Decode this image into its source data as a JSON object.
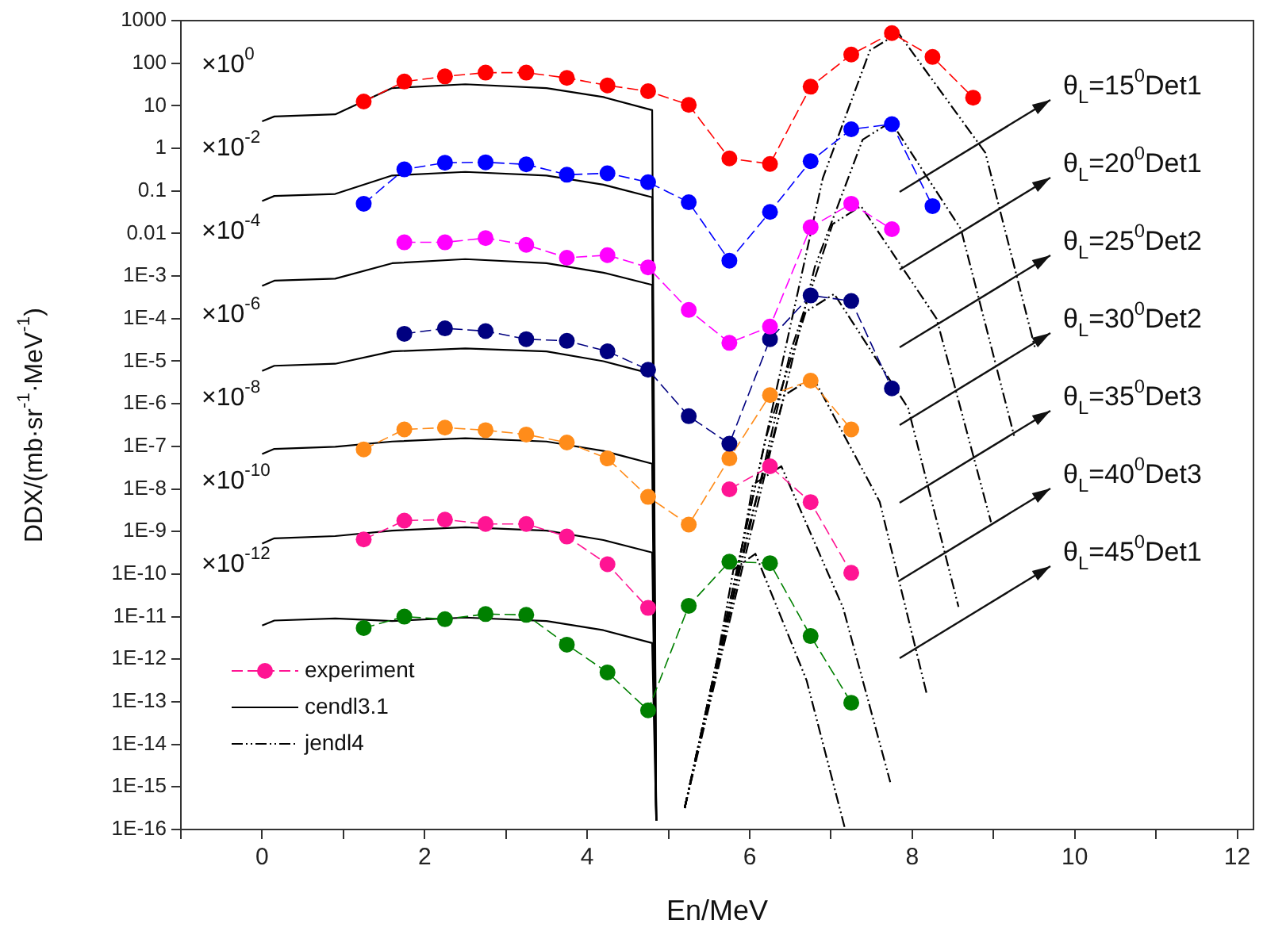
{
  "chart_data": {
    "type": "line",
    "xlabel": "En/MeV",
    "ylabel": "DDX/(mb·sr$^{-1}$·MeV$^{-1}$)",
    "log": "y",
    "grid": false,
    "legend": "bottom left",
    "xlim": [
      -1,
      12.2
    ],
    "ylim": [
      1e-16,
      1000
    ],
    "xticks": [
      {
        "value": -1,
        "label": null
      },
      0,
      {
        "value": 1,
        "label": null
      },
      2,
      {
        "value": 3,
        "label": null
      },
      4,
      {
        "value": 5,
        "label": null
      },
      6,
      {
        "value": 7,
        "label": null
      },
      8,
      {
        "value": 9,
        "label": null
      },
      10,
      {
        "value": 11,
        "label": null
      },
      12
    ],
    "yticks": [
      1000,
      100,
      10,
      1,
      0.1,
      0.01,
      {
        "value": 0.001,
        "label": "1E-3"
      },
      {
        "value": 0.0001,
        "label": "1E-4"
      },
      {
        "value": 1e-05,
        "label": "1E-5"
      },
      {
        "value": 1e-06,
        "label": "1E-6"
      },
      {
        "value": 1e-07,
        "label": "1E-7"
      },
      {
        "value": 1e-08,
        "label": "1E-8"
      },
      {
        "value": 1e-09,
        "label": "1E-9"
      },
      {
        "value": 1e-10,
        "label": "1E-10"
      },
      {
        "value": 1e-11,
        "label": "1E-11"
      },
      {
        "value": 1e-12,
        "label": "1E-12"
      },
      {
        "value": 1e-13,
        "label": "1E-13"
      },
      {
        "value": 1e-14,
        "label": "1E-14"
      },
      {
        "value": 1e-15,
        "label": "1E-15"
      },
      {
        "value": 1e-16,
        "label": "1E-16"
      }
    ],
    "series": [
      {
        "type": "line",
        "marker": "circle",
        "line_style": "dashed",
        "color": "#ff0000",
        "x": [
          1.25,
          1.75,
          2.25,
          2.75,
          3.25,
          3.75,
          4.25,
          4.75,
          5.25,
          5.75,
          6.25,
          6.75,
          7.25,
          7.75,
          8.25,
          8.75
        ],
        "values": [
          12.6,
          37,
          49,
          60,
          60,
          45,
          30,
          22,
          10.5,
          0.58,
          0.43,
          28,
          160,
          510,
          140,
          15.5
        ]
      },
      {
        "type": "line",
        "marker": "circle",
        "line_style": "dashed",
        "color": "#0000ff",
        "x": [
          1.25,
          1.75,
          2.25,
          2.75,
          3.25,
          3.75,
          4.25,
          4.75,
          5.25,
          5.75,
          6.25,
          6.75,
          7.25,
          7.75,
          8.25
        ],
        "values": [
          0.05,
          0.32,
          0.46,
          0.47,
          0.42,
          0.24,
          0.26,
          0.16,
          0.054,
          0.0023,
          0.032,
          0.5,
          2.8,
          3.7,
          0.044
        ]
      },
      {
        "type": "line",
        "marker": "circle",
        "line_style": "dashed",
        "color": "#ff00ff",
        "x": [
          1.75,
          2.25,
          2.75,
          3.25,
          3.75,
          4.25,
          4.75,
          5.25,
          5.75,
          6.25,
          6.75,
          7.25,
          7.75
        ],
        "values": [
          0.0062,
          0.0062,
          0.0078,
          0.0054,
          0.0027,
          0.0031,
          0.0016,
          0.00016,
          2.7e-05,
          6.5e-05,
          0.014,
          0.05,
          0.0126
        ]
      },
      {
        "type": "line",
        "marker": "circle",
        "line_style": "dashed",
        "color": "#000080",
        "x": [
          1.75,
          2.25,
          2.75,
          3.25,
          3.75,
          4.25,
          4.75,
          5.25,
          5.75,
          6.25,
          6.75,
          7.25,
          7.75
        ],
        "values": [
          4.4e-05,
          5.9e-05,
          5.1e-05,
          3.3e-05,
          3e-05,
          1.7e-05,
          6.3e-06,
          5.1e-07,
          1.15e-07,
          3.3e-05,
          0.00035,
          0.00026,
          2.3e-06
        ]
      },
      {
        "type": "line",
        "marker": "circle",
        "line_style": "dashed",
        "color": "#ff8c1a",
        "x": [
          1.25,
          1.75,
          2.25,
          2.75,
          3.25,
          3.75,
          4.25,
          4.75,
          5.25,
          5.75,
          6.25,
          6.75,
          7.25
        ],
        "values": [
          8.5e-08,
          2.5e-07,
          2.75e-07,
          2.4e-07,
          1.9e-07,
          1.23e-07,
          5.2e-08,
          6.5e-09,
          1.45e-09,
          5.2e-08,
          1.6e-06,
          3.5e-06,
          2.5e-07
        ]
      },
      {
        "type": "line",
        "name": "experiment",
        "marker": "circle",
        "line_style": "dashed",
        "color": "#ff1493",
        "x": [
          1.25,
          1.75,
          2.25,
          2.75,
          3.25,
          3.75,
          4.25,
          4.75,
          5.25,
          5.75,
          6.25,
          6.75,
          7.25
        ],
        "values": [
          6.5e-10,
          1.8e-09,
          1.9e-09,
          1.5e-09,
          1.5e-09,
          7.6e-10,
          1.7e-10,
          1.6e-11,
          null,
          9.8e-09,
          3.4e-08,
          4.9e-09,
          1.07e-10
        ]
      },
      {
        "type": "line",
        "marker": "circle",
        "line_style": "dashed",
        "color": "#008000",
        "x": [
          1.25,
          1.75,
          2.25,
          2.75,
          3.25,
          3.75,
          4.25,
          4.75,
          5.25,
          5.75,
          6.25,
          6.75,
          7.25
        ],
        "values": [
          5.4e-12,
          1e-11,
          8.7e-12,
          1.15e-11,
          1.1e-11,
          2.2e-12,
          4.9e-13,
          6.3e-14,
          1.8e-11,
          1.95e-10,
          1.8e-10,
          3.5e-12,
          9.5e-14
        ]
      },
      {
        "type": "line",
        "name": "cendl3.1",
        "marker": "none",
        "line_style": "solid",
        "color": "#000000",
        "x": [
          0,
          0.15,
          0.9,
          1.6,
          2.5,
          3.5,
          4.2,
          4.8,
          4.85
        ],
        "values": [
          4.3,
          5.6,
          6.3,
          26,
          32,
          26,
          16,
          7.9,
          1.6e-16
        ]
      },
      {
        "type": "line",
        "marker": "none",
        "line_style": "solid",
        "color": "#000000",
        "x": [
          0,
          0.15,
          0.9,
          1.6,
          2.5,
          3.5,
          4.2,
          4.8,
          4.85
        ],
        "values": [
          0.058,
          0.076,
          0.085,
          0.23,
          0.28,
          0.23,
          0.14,
          0.071,
          1.6e-16
        ]
      },
      {
        "type": "line",
        "marker": "none",
        "line_style": "solid",
        "color": "#000000",
        "x": [
          0,
          0.15,
          0.9,
          1.6,
          2.5,
          3.5,
          4.2,
          4.8,
          4.85
        ],
        "values": [
          0.00059,
          0.00078,
          0.00087,
          0.002,
          0.0025,
          0.002,
          0.0012,
          0.00062,
          1.6e-16
        ]
      },
      {
        "type": "line",
        "marker": "none",
        "line_style": "solid",
        "color": "#000000",
        "x": [
          0,
          0.15,
          0.9,
          1.6,
          2.5,
          3.5,
          4.2,
          4.8,
          4.85
        ],
        "values": [
          5.9e-06,
          7.8e-06,
          8.7e-06,
          1.7e-05,
          2e-05,
          1.7e-05,
          1e-05,
          5e-06,
          1.6e-16
        ]
      },
      {
        "type": "line",
        "marker": "none",
        "line_style": "solid",
        "color": "#000000",
        "x": [
          0,
          0.15,
          0.9,
          1.6,
          2.5,
          3.5,
          4.2,
          4.8,
          4.85
        ],
        "values": [
          6.6e-08,
          8.7e-08,
          9.8e-08,
          1.3e-07,
          1.55e-07,
          1.3e-07,
          7.8e-08,
          3.9e-08,
          1.6e-16
        ]
      },
      {
        "type": "line",
        "marker": "none",
        "line_style": "solid",
        "color": "#000000",
        "x": [
          0,
          0.15,
          0.9,
          1.6,
          2.5,
          3.5,
          4.2,
          4.8,
          4.85
        ],
        "values": [
          5.2e-10,
          6.9e-10,
          7.8e-10,
          1.05e-09,
          1.26e-09,
          1.05e-09,
          6.3e-10,
          3.2e-10,
          1.6e-16
        ]
      },
      {
        "type": "line",
        "marker": "none",
        "line_style": "solid",
        "color": "#000000",
        "x": [
          0,
          0.15,
          0.9,
          1.6,
          2.5,
          3.5,
          4.2,
          4.8,
          4.85
        ],
        "values": [
          6.2e-12,
          8.1e-12,
          9.1e-12,
          7.9e-12,
          9.5e-12,
          7.9e-12,
          4.8e-12,
          2.4e-12,
          1.6e-16
        ]
      },
      {
        "type": "line",
        "name": "jendl4",
        "marker": "none",
        "line_style": "dashed",
        "color": "#000000",
        "x": [
          5.2,
          6.9,
          7.48,
          7.83,
          8.9,
          9.51
        ],
        "values": [
          3.2e-16,
          0.2,
          200,
          510,
          0.79,
          2.1e-05
        ]
      },
      {
        "type": "line",
        "marker": "none",
        "line_style": "dashed",
        "color": "#000000",
        "x": [
          5.2,
          6.8,
          7.39,
          7.74,
          8.6,
          9.26
        ],
        "values": [
          3.2e-16,
          0.0016,
          1.6,
          4.2,
          0.0126,
          1.6e-07
        ]
      },
      {
        "type": "line",
        "marker": "none",
        "line_style": "dashed",
        "color": "#000000",
        "x": [
          5.2,
          6.5,
          7.02,
          7.37,
          8.3,
          8.97
        ],
        "values": [
          3.2e-16,
          1.6e-05,
          0.0166,
          0.044,
          0.0001,
          1.66e-09
        ]
      },
      {
        "type": "line",
        "marker": "none",
        "line_style": "dashed",
        "color": "#000000",
        "x": [
          5.2,
          6.2,
          6.69,
          7.04,
          7.95,
          8.57
        ],
        "values": [
          3.2e-16,
          1.6e-07,
          0.000145,
          0.00038,
          7.9e-07,
          1.7e-11
        ]
      },
      {
        "type": "line",
        "marker": "none",
        "line_style": "dashed",
        "color": "#000000",
        "x": [
          5.2,
          6.0,
          6.43,
          6.78,
          7.6,
          8.18
        ],
        "values": [
          3.2e-16,
          1.6e-09,
          1.6e-06,
          4.2e-06,
          5e-09,
          1.5e-13
        ]
      },
      {
        "type": "line",
        "marker": "none",
        "line_style": "dashed",
        "color": "#000000",
        "x": [
          5.2,
          5.8,
          6.04,
          6.39,
          7.15,
          7.73
        ],
        "values": [
          3.2e-16,
          3.2e-11,
          1.26e-08,
          3.4e-08,
          1.6e-11,
          1.3e-15
        ]
      },
      {
        "type": "line",
        "marker": "none",
        "line_style": "dashed",
        "color": "#000000",
        "x": [
          5.2,
          5.6,
          5.8,
          6.07,
          6.7,
          7.17
        ],
        "values": [
          3.2e-16,
          1e-12,
          1.26e-10,
          3e-10,
          3.2e-13,
          1.1e-16
        ]
      }
    ],
    "annotations": [
      "×10$^{0}$",
      "×10$^{-2}$",
      "×10$^{-4}$",
      "×10$^{-6}$",
      "×10$^{-8}$",
      "×10$^{-10}$",
      "×10$^{-12}$",
      "θ$_{L}$=15$^{0}$Det1",
      "θ$_{L}$=20$^{0}$Det1",
      "θ$_{L}$=25$^{0}$Det2",
      "θ$_{L}$=30$^{0}$Det2",
      "θ$_{L}$=35$^{0}$Det3",
      "θ$_{L}$=40$^{0}$Det3",
      "θ$_{L}$=45$^{0}$Det1"
    ]
  }
}
